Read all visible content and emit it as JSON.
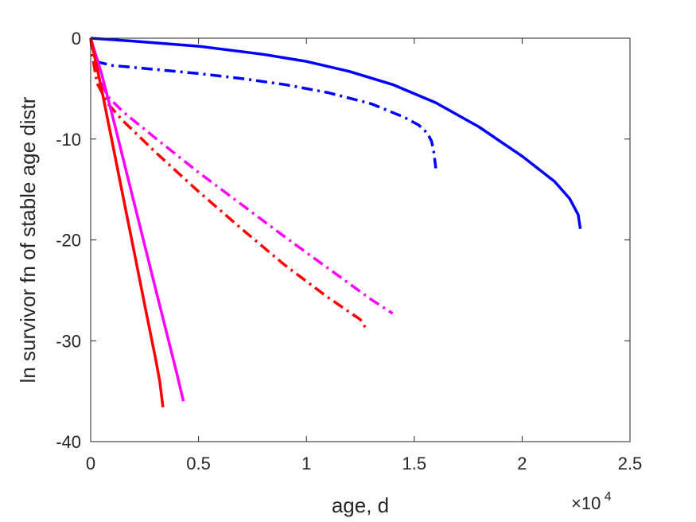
{
  "chart_data": {
    "type": "line",
    "xlabel": "age, d",
    "ylabel": "ln survivor fn of stable age distr",
    "x_multiplier": {
      "base": "×10",
      "exponent": "4"
    },
    "xlim": [
      0,
      25000
    ],
    "ylim": [
      -40,
      0
    ],
    "x_ticks": [
      0,
      5000,
      10000,
      15000,
      20000,
      25000
    ],
    "x_tick_labels": [
      "0",
      "0.5",
      "1",
      "1.5",
      "2",
      "2.5"
    ],
    "y_ticks": [
      0,
      -10,
      -20,
      -30,
      -40
    ],
    "y_tick_labels": [
      "0",
      "-10",
      "-20",
      "-30",
      "-40"
    ],
    "grid": false,
    "series": [
      {
        "color": "#0000ff",
        "style": "solid",
        "x": [
          0,
          2000,
          5000,
          8000,
          10000,
          12000,
          14000,
          16000,
          18000,
          20000,
          21500,
          22200,
          22600,
          22700
        ],
        "y": [
          0,
          -0.3,
          -0.8,
          -1.6,
          -2.3,
          -3.3,
          -4.6,
          -6.4,
          -8.8,
          -11.7,
          -14.2,
          -15.9,
          -17.5,
          -18.9
        ]
      },
      {
        "color": "#0000ff",
        "style": "dashdot",
        "x": [
          0,
          100,
          200,
          400,
          1000,
          3000,
          5000,
          7000,
          9000,
          11000,
          13000,
          14500,
          15200,
          15600,
          15800,
          15900,
          16000
        ],
        "y": [
          0,
          -1.2,
          -2.0,
          -2.4,
          -2.7,
          -3.1,
          -3.5,
          -4.0,
          -4.6,
          -5.4,
          -6.5,
          -7.8,
          -8.6,
          -9.4,
          -10.2,
          -11.2,
          -12.9
        ]
      },
      {
        "color": "#ff00ff",
        "style": "dashdot",
        "x": [
          0,
          100,
          300,
          800,
          1500,
          3000,
          5000,
          7000,
          9000,
          11000,
          13000,
          14000
        ],
        "y": [
          0,
          -1.8,
          -3.5,
          -5.8,
          -7.3,
          -9.9,
          -13.3,
          -16.5,
          -19.7,
          -22.8,
          -25.9,
          -27.3
        ]
      },
      {
        "color": "#ff0000",
        "style": "dashdot",
        "x": [
          0,
          100,
          300,
          800,
          1500,
          3000,
          5000,
          7000,
          9000,
          11000,
          12500,
          12800
        ],
        "y": [
          0,
          -2.0,
          -4.5,
          -6.5,
          -8.2,
          -11.3,
          -15.2,
          -18.9,
          -22.5,
          -25.7,
          -27.9,
          -28.9
        ]
      },
      {
        "color": "#ff00ff",
        "style": "solid",
        "x": [
          0,
          500,
          1000,
          2000,
          3000,
          4000,
          4300
        ],
        "y": [
          0,
          -3.5,
          -7.6,
          -16.2,
          -24.8,
          -33.3,
          -36.0
        ]
      },
      {
        "color": "#ff0000",
        "style": "solid",
        "x": [
          0,
          500,
          1000,
          1500,
          2000,
          2500,
          3000,
          3200,
          3350
        ],
        "y": [
          0,
          -5.0,
          -10.3,
          -15.7,
          -21.0,
          -26.4,
          -31.7,
          -34.0,
          -36.6
        ]
      }
    ]
  }
}
